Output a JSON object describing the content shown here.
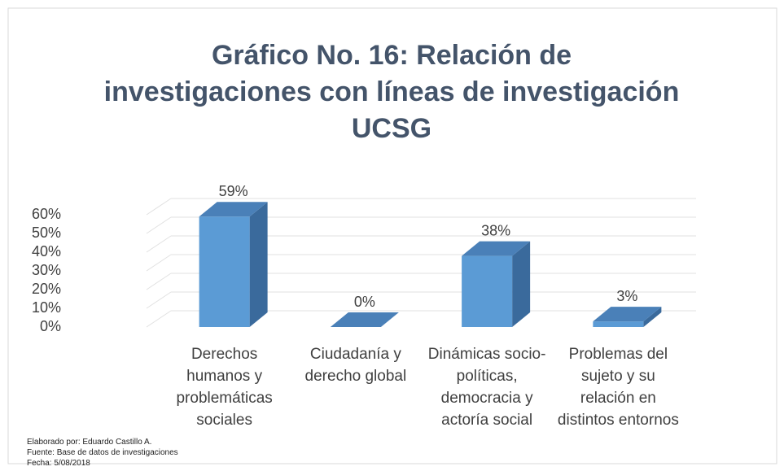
{
  "chart_data": {
    "type": "bar3d",
    "title": [
      "Gráfico No. 16: Relación de",
      "investigaciones con líneas de investigación",
      "UCSG"
    ],
    "categories": [
      "Derechos humanos y problemáticas sociales",
      "Ciudadanía y derecho global",
      "Dinámicas socio-políticas, democracia y actoría social",
      "Problemas del sujeto y su relación en distintos entornos"
    ],
    "values": [
      59,
      0,
      38,
      3
    ],
    "value_labels": [
      "59%",
      "0%",
      "38%",
      "3%"
    ],
    "color": "#5b9bd5",
    "ylim": [
      0,
      60
    ],
    "yticks": [
      {
        "value": 0,
        "label": "0%"
      },
      {
        "value": 10,
        "label": "10%"
      },
      {
        "value": 20,
        "label": "20%"
      },
      {
        "value": 30,
        "label": "30%"
      },
      {
        "value": 40,
        "label": "40%"
      },
      {
        "value": 50,
        "label": "50%"
      },
      {
        "value": 60,
        "label": "60%"
      }
    ],
    "grid": true,
    "notes": [
      "Elaborado por: Eduardo Castillo A.",
      "Fuente: Base de datos de investigaciones",
      "Fecha: 5/08/2018"
    ]
  }
}
